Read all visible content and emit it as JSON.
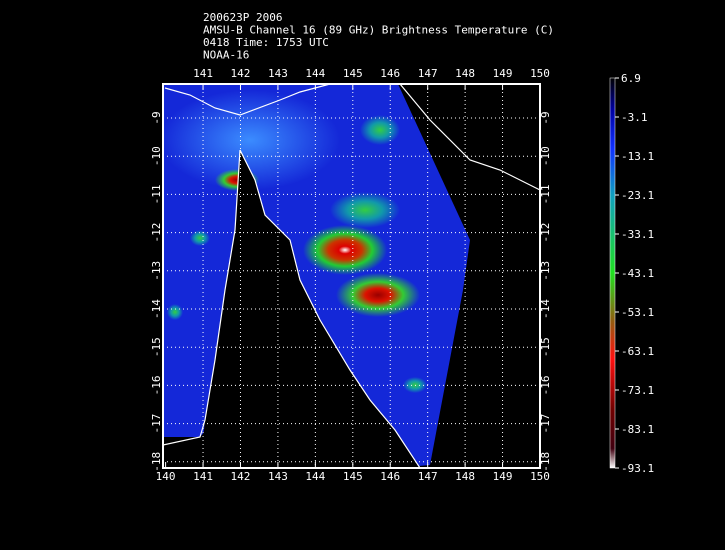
{
  "header": {
    "lines": [
      "200623P 2006",
      "AMSU-B Channel 16 (89 GHz) Brightness Temperature (C)",
      "0418 Time: 1753 UTC",
      "NOAA-16"
    ]
  },
  "map": {
    "top_lon_ticks": [
      141,
      142,
      143,
      144,
      145,
      146,
      147,
      148,
      149,
      150
    ],
    "bottom_lon_ticks": [
      140,
      141,
      142,
      143,
      144,
      145,
      146,
      147,
      148,
      149,
      150
    ],
    "lat_ticks": [
      -9,
      -10,
      -11,
      -12,
      -13,
      -14,
      -15,
      -16,
      -17,
      -18
    ]
  },
  "colorbar": {
    "lim": [
      -93.1,
      6.9
    ],
    "ticks": [
      6.9,
      -3.1,
      -13.1,
      -23.1,
      -33.1,
      -43.1,
      -53.1,
      -63.1,
      -73.1,
      -83.1,
      -93.1
    ]
  }
}
